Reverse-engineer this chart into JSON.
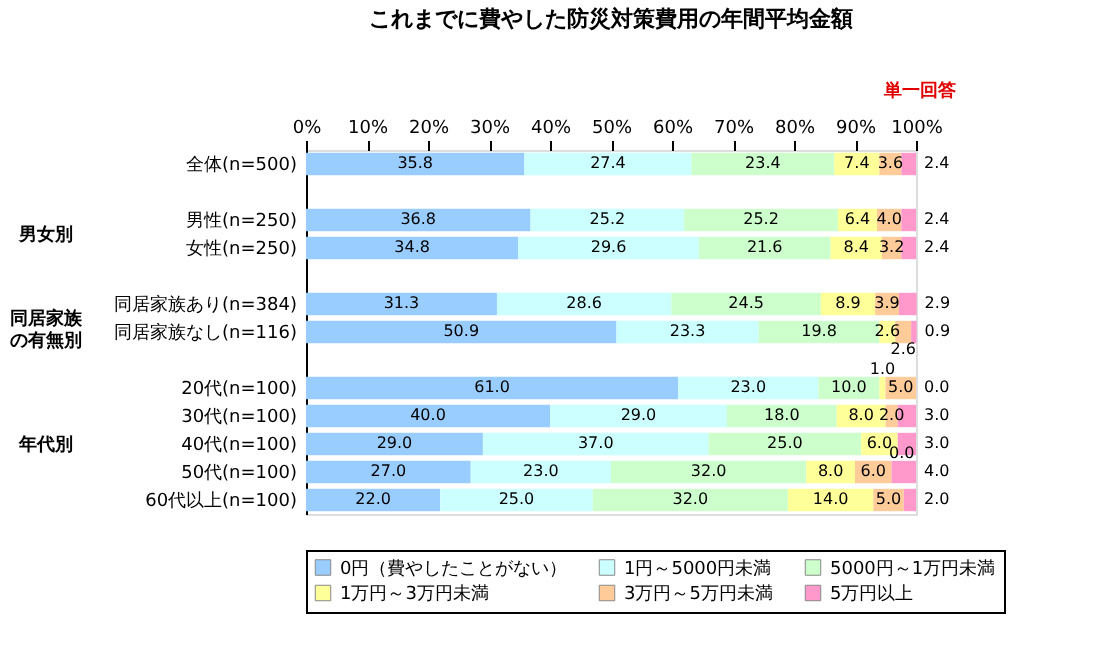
{
  "chart_data": {
    "type": "bar",
    "orientation": "horizontal",
    "stacked": true,
    "title": "これまでに費やした防災対策費用の年間平均金額",
    "annotations": [
      "単一回答",
      "男女別",
      "同居家族の有無別",
      "年代別"
    ],
    "categories": [
      "全体(n=500)",
      null,
      "男性(n=250)",
      "女性(n=250)",
      null,
      "同居家族あり(n=384)",
      "同居家族なし(n=116)",
      null,
      "20代(n=100)",
      "30代(n=100)",
      "40代(n=100)",
      "50代(n=100)",
      "60代以上(n=100)"
    ],
    "series": [
      {
        "name": "0円（費やしたことがない）",
        "color": "#99ccff",
        "values": [
          35.8,
          null,
          36.8,
          34.8,
          null,
          31.3,
          50.9,
          null,
          61.0,
          40.0,
          29.0,
          27.0,
          22.0
        ],
        "value_labels": [
          "35.8",
          null,
          "36.8",
          "34.8",
          null,
          "31.3",
          "50.9",
          null,
          "61.0",
          "40.0",
          "29.0",
          "27.0",
          "22.0"
        ]
      },
      {
        "name": "1円～5000円未満",
        "color": "#ccffff",
        "values": [
          27.4,
          null,
          25.2,
          29.6,
          null,
          28.6,
          23.3,
          null,
          23.0,
          29.0,
          37.0,
          23.0,
          25.0
        ],
        "value_labels": [
          "27.4",
          null,
          "25.2",
          "29.6",
          null,
          "28.6",
          "23.3",
          null,
          "23.0",
          "29.0",
          "37.0",
          "23.0",
          "25.0"
        ]
      },
      {
        "name": "5000円～1万円未満",
        "color": "#ccffcc",
        "values": [
          23.4,
          null,
          25.2,
          21.6,
          null,
          24.5,
          19.8,
          null,
          10.0,
          18.0,
          25.0,
          32.0,
          32.0
        ],
        "value_labels": [
          "23.4",
          null,
          "25.2",
          "21.6",
          null,
          "24.5",
          "19.8",
          null,
          "10.0",
          "18.0",
          "25.0",
          "32.0",
          "32.0"
        ]
      },
      {
        "name": "1万円～3万円未満",
        "color": "#ffff99",
        "values": [
          7.4,
          null,
          6.4,
          8.4,
          null,
          8.9,
          2.6,
          null,
          1.0,
          8.0,
          6.0,
          8.0,
          14.0
        ],
        "value_labels": [
          "7.4",
          null,
          "6.4",
          "8.4",
          null,
          "8.9",
          "2.6",
          null,
          "1.0",
          "8.0",
          "6.0",
          "8.0",
          "14.0"
        ]
      },
      {
        "name": "3万円～5万円未満",
        "color": "#ffcc99",
        "values": [
          3.6,
          null,
          4.0,
          3.2,
          null,
          3.9,
          2.6,
          null,
          5.0,
          2.0,
          0.0,
          6.0,
          5.0
        ],
        "value_labels": [
          "3.6",
          null,
          "4.0",
          "3.2",
          null,
          "3.9",
          "2.6",
          null,
          "5.0",
          "2.0",
          "0.0",
          "6.0",
          "5.0"
        ]
      },
      {
        "name": "5万円以上",
        "color": "#ff99cc",
        "values": [
          2.4,
          null,
          2.4,
          2.4,
          null,
          2.9,
          0.9,
          null,
          0.0,
          3.0,
          3.0,
          4.0,
          2.0
        ],
        "value_labels": [
          "2.4",
          null,
          "2.4",
          "2.4",
          null,
          "2.9",
          "0.9",
          null,
          "0.0",
          "3.0",
          "3.0",
          "4.0",
          "2.0"
        ]
      }
    ],
    "xlim": [
      0,
      100
    ],
    "xticks": [
      {
        "value": 0,
        "label": "0%"
      },
      {
        "value": 10,
        "label": "10%"
      },
      {
        "value": 20,
        "label": "20%"
      },
      {
        "value": 30,
        "label": "30%"
      },
      {
        "value": 40,
        "label": "40%"
      },
      {
        "value": 50,
        "label": "50%"
      },
      {
        "value": 60,
        "label": "60%"
      },
      {
        "value": 70,
        "label": "70%"
      },
      {
        "value": 80,
        "label": "80%"
      },
      {
        "value": 90,
        "label": "90%"
      },
      {
        "value": 100,
        "label": "100%"
      }
    ],
    "legend": "bottom",
    "grid": false
  }
}
